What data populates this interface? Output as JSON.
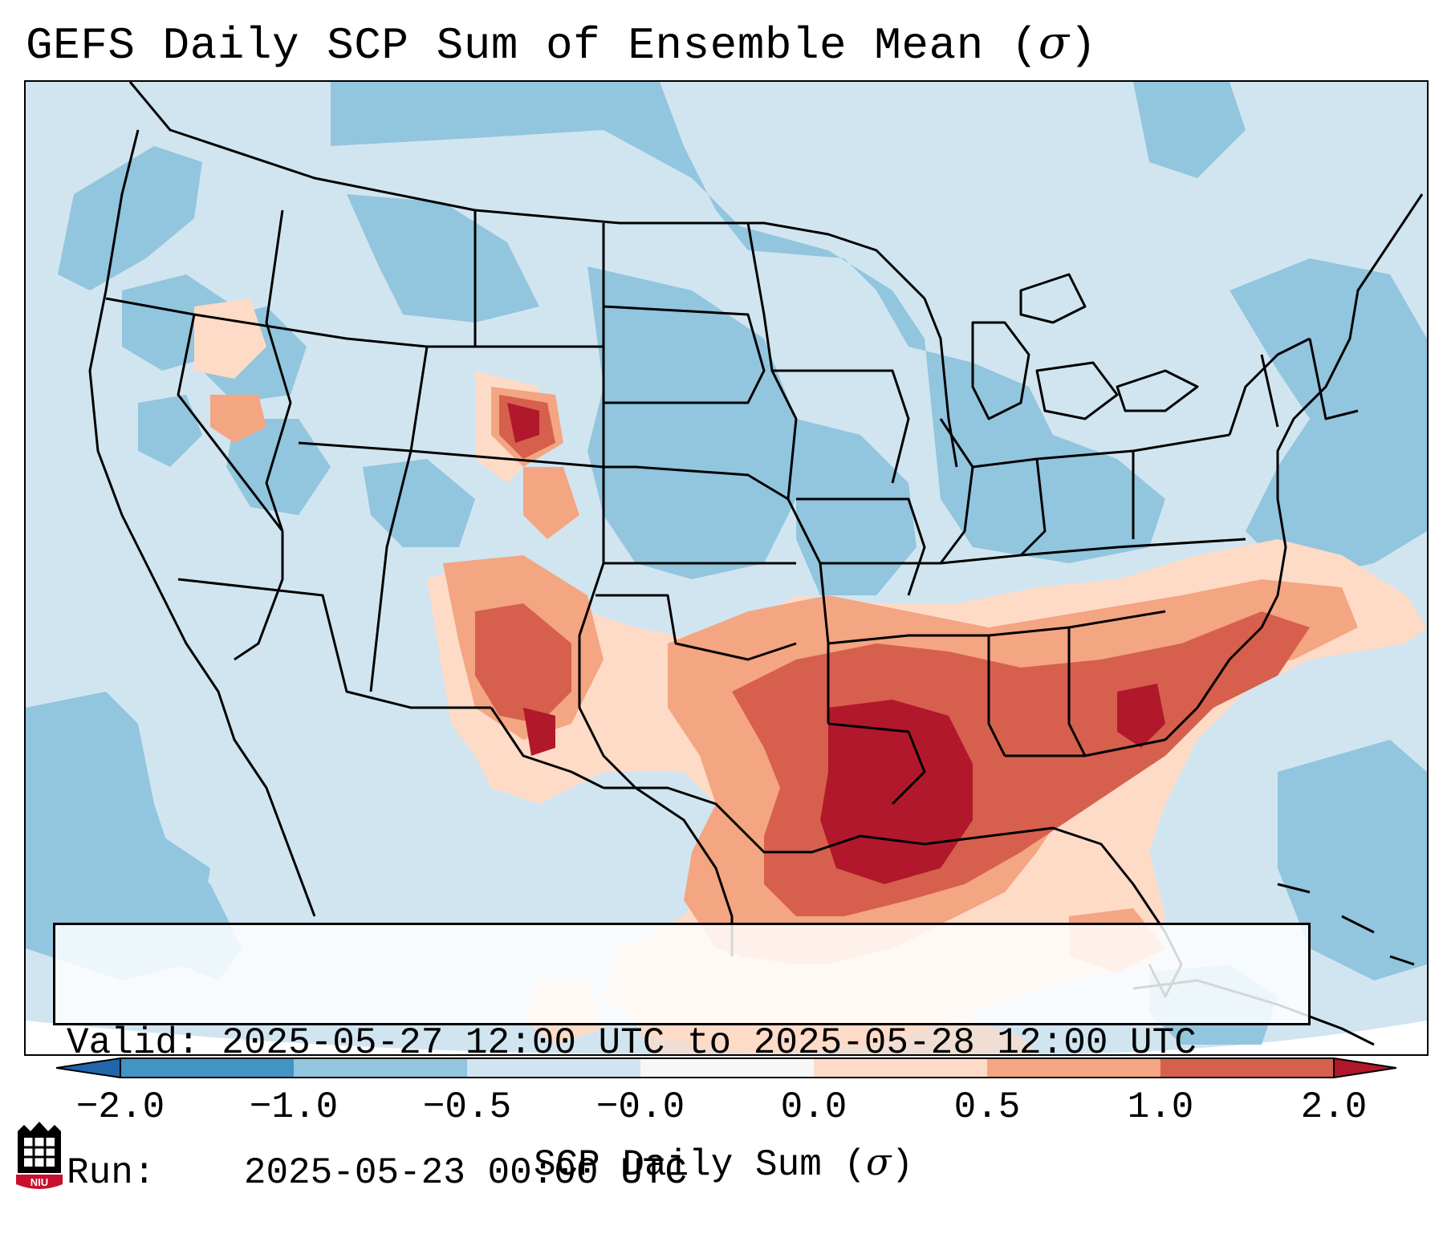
{
  "title": {
    "text": "GEFS Daily SCP Sum of Ensemble Mean (",
    "symbol": "σ",
    "close": ")"
  },
  "info": {
    "valid_label": "Valid:",
    "valid_value": "2025-05-27 12:00 UTC to 2025-05-28 12:00 UTC",
    "run_label": "Run:",
    "run_value": "2025-05-23 00:00 UTC"
  },
  "colorbar": {
    "tick_labels": [
      "−2.0",
      "−1.0",
      "−0.5",
      "−0.0",
      "0.0",
      "0.5",
      "1.0",
      "2.0"
    ],
    "colors": {
      "below": "#4393c3",
      "-2.0_-1.0": "#4393c3",
      "-1.0_-0.5": "#92c5de",
      "-0.5_-0.0": "#d1e5f0",
      "-0.0_0.0": "#f7f7f7",
      "0.0_0.5": "#fddbc7",
      "0.5_1.0": "#f4a582",
      "1.0_2.0": "#d6604d",
      "above": "#b2182b"
    },
    "label_text": "SCP Daily Sum (",
    "label_symbol": "σ",
    "label_close": ")"
  },
  "map": {
    "background_color": "#d1e5f0",
    "region": "Contiguous United States"
  },
  "logo": {
    "text": "NIU",
    "color": "#c8102e"
  }
}
